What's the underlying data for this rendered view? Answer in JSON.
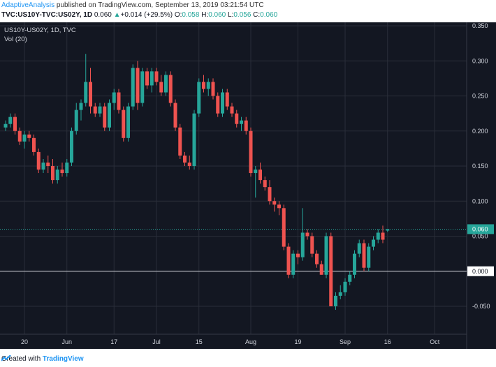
{
  "header": {
    "author": "AdaptiveAnalysis",
    "published": " published on TradingView.com, September 13, 2019 03:21:54 UTC",
    "symbol": "TVC:US10Y-TVC:US02Y, 1D",
    "last": "0.060",
    "arrow": "▲",
    "change": "+0.014 (+29.5%)",
    "o_label": "O:",
    "o_value": "0.058",
    "h_label": "H:",
    "h_value": "0.060",
    "l_label": "L:",
    "l_value": "0.056",
    "c_label": "C:",
    "c_value": "0.060"
  },
  "legend": {
    "title": "US10Y-US02Y, 1D, TVC",
    "volume": "Vol (20)"
  },
  "footer": {
    "created_with": "Created with",
    "brand": "TradingView"
  },
  "colors": {
    "background": "#131722",
    "grid": "#2a2e39",
    "up": "#26a69a",
    "down": "#ef5350",
    "price_line": "#26a69a",
    "zero_line": "#d1d4dc",
    "axis_text": "#d1d4dc"
  },
  "chart_data": {
    "type": "candlestick",
    "ylim": [
      -0.08,
      0.355
    ],
    "y_ticks": [
      "0.350",
      "0.300",
      "0.250",
      "0.200",
      "0.150",
      "0.100",
      "0.050",
      "0.000",
      "-0.050"
    ],
    "y_tick_values": [
      0.35,
      0.3,
      0.25,
      0.2,
      0.15,
      0.1,
      0.05,
      0.0,
      -0.05
    ],
    "x_tick_labels": [
      "20",
      "Jun",
      "17",
      "Jul",
      "15",
      "Aug",
      "19",
      "Sep",
      "16",
      "Oct"
    ],
    "x_tick_bar_index": [
      4,
      13,
      23,
      32,
      41,
      52,
      62,
      72,
      81,
      91
    ],
    "current_price": 0.06,
    "current_price_label": "0.060",
    "zero_label": "0.000",
    "candles": [
      [
        0.205,
        0.215,
        0.2,
        0.21
      ],
      [
        0.21,
        0.225,
        0.205,
        0.22
      ],
      [
        0.22,
        0.225,
        0.195,
        0.2
      ],
      [
        0.2,
        0.205,
        0.18,
        0.185
      ],
      [
        0.185,
        0.2,
        0.175,
        0.195
      ],
      [
        0.195,
        0.2,
        0.185,
        0.19
      ],
      [
        0.19,
        0.195,
        0.165,
        0.17
      ],
      [
        0.17,
        0.175,
        0.14,
        0.145
      ],
      [
        0.145,
        0.16,
        0.14,
        0.155
      ],
      [
        0.155,
        0.165,
        0.14,
        0.15
      ],
      [
        0.15,
        0.16,
        0.125,
        0.13
      ],
      [
        0.13,
        0.15,
        0.125,
        0.145
      ],
      [
        0.145,
        0.155,
        0.135,
        0.14
      ],
      [
        0.14,
        0.16,
        0.135,
        0.155
      ],
      [
        0.155,
        0.205,
        0.15,
        0.2
      ],
      [
        0.2,
        0.24,
        0.195,
        0.23
      ],
      [
        0.23,
        0.245,
        0.215,
        0.24
      ],
      [
        0.24,
        0.31,
        0.235,
        0.27
      ],
      [
        0.27,
        0.29,
        0.225,
        0.235
      ],
      [
        0.235,
        0.24,
        0.22,
        0.225
      ],
      [
        0.225,
        0.24,
        0.22,
        0.235
      ],
      [
        0.235,
        0.24,
        0.2,
        0.205
      ],
      [
        0.205,
        0.245,
        0.2,
        0.24
      ],
      [
        0.24,
        0.26,
        0.23,
        0.255
      ],
      [
        0.255,
        0.26,
        0.225,
        0.23
      ],
      [
        0.23,
        0.235,
        0.185,
        0.19
      ],
      [
        0.19,
        0.24,
        0.185,
        0.235
      ],
      [
        0.235,
        0.295,
        0.23,
        0.29
      ],
      [
        0.29,
        0.3,
        0.23,
        0.24
      ],
      [
        0.24,
        0.29,
        0.235,
        0.285
      ],
      [
        0.285,
        0.29,
        0.26,
        0.265
      ],
      [
        0.265,
        0.29,
        0.255,
        0.285
      ],
      [
        0.285,
        0.29,
        0.265,
        0.27
      ],
      [
        0.27,
        0.28,
        0.25,
        0.255
      ],
      [
        0.255,
        0.285,
        0.25,
        0.28
      ],
      [
        0.28,
        0.285,
        0.235,
        0.24
      ],
      [
        0.24,
        0.245,
        0.2,
        0.205
      ],
      [
        0.205,
        0.21,
        0.16,
        0.165
      ],
      [
        0.165,
        0.17,
        0.15,
        0.155
      ],
      [
        0.155,
        0.165,
        0.145,
        0.15
      ],
      [
        0.15,
        0.23,
        0.145,
        0.225
      ],
      [
        0.225,
        0.275,
        0.22,
        0.27
      ],
      [
        0.27,
        0.28,
        0.255,
        0.26
      ],
      [
        0.26,
        0.275,
        0.25,
        0.27
      ],
      [
        0.27,
        0.275,
        0.245,
        0.25
      ],
      [
        0.25,
        0.255,
        0.22,
        0.225
      ],
      [
        0.225,
        0.26,
        0.22,
        0.255
      ],
      [
        0.255,
        0.26,
        0.23,
        0.235
      ],
      [
        0.235,
        0.24,
        0.22,
        0.225
      ],
      [
        0.225,
        0.23,
        0.205,
        0.21
      ],
      [
        0.21,
        0.22,
        0.2,
        0.215
      ],
      [
        0.215,
        0.22,
        0.195,
        0.2
      ],
      [
        0.2,
        0.205,
        0.135,
        0.14
      ],
      [
        0.14,
        0.15,
        0.105,
        0.145
      ],
      [
        0.145,
        0.155,
        0.125,
        0.13
      ],
      [
        0.13,
        0.135,
        0.115,
        0.12
      ],
      [
        0.12,
        0.13,
        0.095,
        0.1
      ],
      [
        0.1,
        0.105,
        0.085,
        0.095
      ],
      [
        0.095,
        0.1,
        0.08,
        0.09
      ],
      [
        0.09,
        0.095,
        0.03,
        0.035
      ],
      [
        0.035,
        0.04,
        -0.01,
        -0.005
      ],
      [
        -0.005,
        0.03,
        -0.01,
        0.025
      ],
      [
        0.025,
        0.03,
        0.01,
        0.02
      ],
      [
        0.02,
        0.09,
        0.015,
        0.055
      ],
      [
        0.055,
        0.06,
        0.045,
        0.05
      ],
      [
        0.05,
        0.055,
        0.02,
        0.025
      ],
      [
        0.025,
        0.03,
        0.005,
        0.01
      ],
      [
        0.01,
        0.015,
        -0.005,
        -0.005
      ],
      [
        -0.005,
        0.055,
        -0.01,
        0.05
      ],
      [
        0.05,
        0.055,
        -0.05,
        -0.05
      ],
      [
        -0.05,
        -0.03,
        -0.055,
        -0.035
      ],
      [
        -0.035,
        -0.02,
        -0.04,
        -0.03
      ],
      [
        -0.03,
        -0.01,
        -0.035,
        -0.015
      ],
      [
        -0.015,
        0.0,
        -0.02,
        -0.005
      ],
      [
        -0.005,
        0.03,
        -0.01,
        0.025
      ],
      [
        0.025,
        0.045,
        0.02,
        0.04
      ],
      [
        0.04,
        0.045,
        0.0,
        0.005
      ],
      [
        0.005,
        0.04,
        0.0,
        0.035
      ],
      [
        0.035,
        0.05,
        0.03,
        0.045
      ],
      [
        0.045,
        0.06,
        0.04,
        0.055
      ],
      [
        0.055,
        0.065,
        0.04,
        0.045
      ],
      [
        0.058,
        0.06,
        0.056,
        0.06
      ]
    ]
  }
}
